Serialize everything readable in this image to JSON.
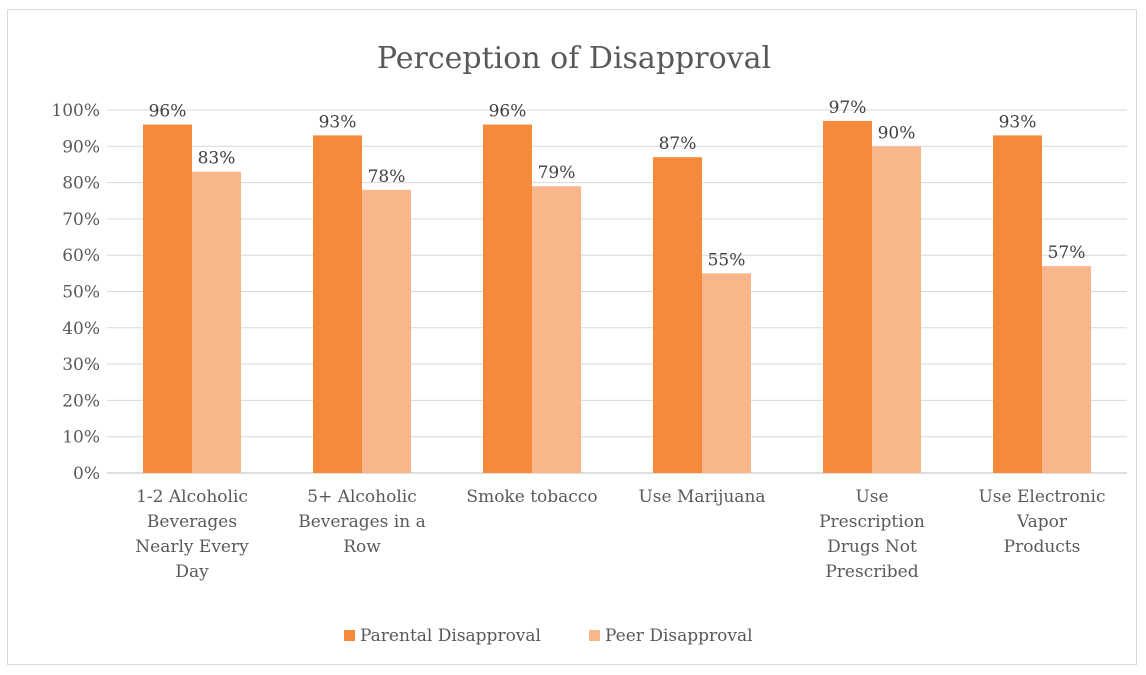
{
  "chart_data": {
    "type": "bar",
    "title": "Perception of Disapproval",
    "categories": [
      [
        "1-2 Alcoholic",
        "Beverages",
        "Nearly Every",
        "Day"
      ],
      [
        "5+ Alcoholic",
        "Beverages in a",
        "Row"
      ],
      [
        "Smoke tobacco"
      ],
      [
        "Use Marijuana"
      ],
      [
        "Use",
        "Prescription",
        "Drugs Not",
        "Prescribed"
      ],
      [
        "Use Electronic",
        "Vapor",
        "Products"
      ]
    ],
    "series": [
      {
        "name": "Parental Disapproval",
        "color": "#f58b3a",
        "values": [
          0.96,
          0.93,
          0.96,
          0.87,
          0.97,
          0.93
        ],
        "labels": [
          "96%",
          "93%",
          "96%",
          "87%",
          "97%",
          "93%"
        ]
      },
      {
        "name": "Peer Disapproval",
        "color": "#f9b68a",
        "values": [
          0.83,
          0.78,
          0.79,
          0.55,
          0.9,
          0.57
        ],
        "labels": [
          "83%",
          "78%",
          "79%",
          "55%",
          "90%",
          "57%"
        ]
      }
    ],
    "yticks": [
      "0%",
      "10%",
      "20%",
      "30%",
      "40%",
      "50%",
      "60%",
      "70%",
      "80%",
      "90%",
      "100%"
    ],
    "ylim": [
      0,
      1
    ],
    "grid": true,
    "legend_position": "bottom"
  }
}
